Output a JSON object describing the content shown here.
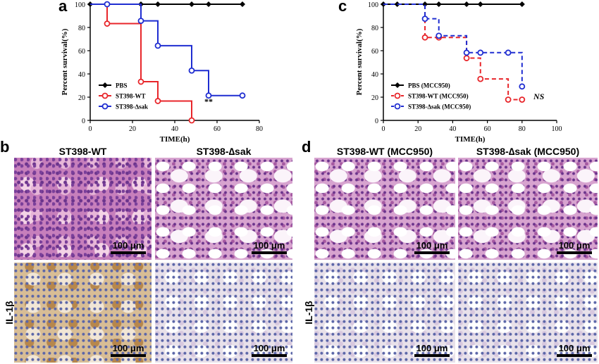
{
  "panels": {
    "a": "a",
    "b": "b",
    "c": "c",
    "d": "d"
  },
  "chart_data": [
    {
      "type": "line",
      "panel": "a",
      "xlabel": "TIME(h)",
      "ylabel": "Percent survival(%)",
      "xlim": [
        0,
        80
      ],
      "ylim": [
        0,
        100
      ],
      "xticks": [
        0,
        20,
        40,
        60,
        80
      ],
      "yticks": [
        0,
        20,
        40,
        60,
        80,
        100
      ],
      "legend_position": "bottom-left",
      "annotation": "**",
      "series": [
        {
          "name": "PBS",
          "color": "#000000",
          "dashed": false,
          "marker": "diamond",
          "x": [
            0,
            24,
            32,
            48,
            56,
            72
          ],
          "y": [
            100,
            100,
            100,
            100,
            100,
            100
          ]
        },
        {
          "name": "ST398-WT",
          "color": "#e8262b",
          "dashed": false,
          "marker": "circle",
          "x": [
            0,
            8,
            24,
            32,
            48
          ],
          "y": [
            100,
            83.3,
            33.3,
            16.7,
            0
          ]
        },
        {
          "name": "ST398-∆sak",
          "color": "#1f2dd1",
          "dashed": false,
          "marker": "circle",
          "x": [
            0,
            8,
            24,
            32,
            48,
            56,
            72
          ],
          "y": [
            100,
            100,
            85.7,
            64.3,
            42.9,
            21.4,
            21.4
          ]
        }
      ]
    },
    {
      "type": "line",
      "panel": "c",
      "xlabel": "TIME(h)",
      "ylabel": "Percent survival(%)",
      "xlim": [
        0,
        100
      ],
      "ylim": [
        0,
        100
      ],
      "xticks": [
        0,
        20,
        40,
        60,
        80,
        100
      ],
      "yticks": [
        0,
        20,
        40,
        60,
        80,
        100
      ],
      "legend_position": "bottom-left",
      "annotation": "NS",
      "series": [
        {
          "name": "PBS (MCC950)",
          "color": "#000000",
          "dashed": false,
          "marker": "diamond",
          "x": [
            0,
            8,
            24,
            32,
            48,
            56,
            80
          ],
          "y": [
            100,
            100,
            100,
            100,
            100,
            100,
            100
          ]
        },
        {
          "name": "ST398-WT (MCC950)",
          "color": "#e8262b",
          "dashed": true,
          "marker": "circle",
          "x": [
            0,
            24,
            32,
            48,
            56,
            72,
            80
          ],
          "y": [
            100,
            71.4,
            71.4,
            53.6,
            35.7,
            17.9,
            17.9
          ]
        },
        {
          "name": "ST398-∆sak (MCC950)",
          "color": "#1f2dd1",
          "dashed": true,
          "marker": "circle",
          "x": [
            0,
            24,
            32,
            48,
            56,
            72,
            80
          ],
          "y": [
            100,
            87.5,
            72.9,
            58.3,
            58.3,
            58.3,
            29.2
          ]
        }
      ]
    }
  ],
  "micrographs": {
    "b_title_wt": "ST398-WT",
    "b_title_sak": "ST398-∆sak",
    "d_title_wt": "ST398-WT (MCC950)",
    "d_title_sak": "ST398-∆sak (MCC950)",
    "row_label_il1b": "IL-1β",
    "scale_label": "100 μm"
  }
}
